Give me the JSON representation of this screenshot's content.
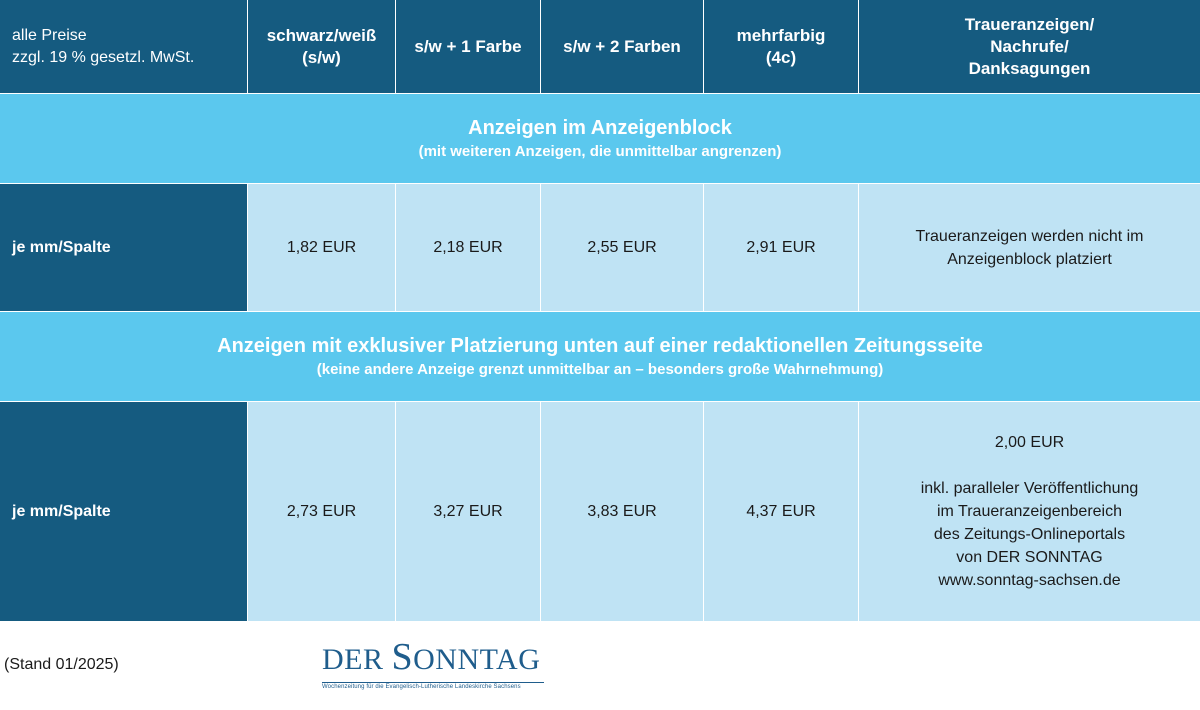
{
  "header": {
    "note_line1": "alle Preise",
    "note_line2": "zzgl. 19 % gesetzl. MwSt.",
    "col1_line1": "schwarz/weiß",
    "col1_line2": "(s/w)",
    "col2": "s/w + 1 Farbe",
    "col3": "s/w + 2 Farben",
    "col4_line1": "mehrfarbig",
    "col4_line2": "(4c)",
    "col5_line1": "Traueranzeigen/",
    "col5_line2": "Nachrufe/",
    "col5_line3": "Danksagungen"
  },
  "section1": {
    "title": "Anzeigen im Anzeigenblock",
    "subtitle": "(mit weiteren Anzeigen, die unmittelbar angrenzen)"
  },
  "row1": {
    "label": "je mm/Spalte",
    "bw": "1,82 EUR",
    "one_color": "2,18 EUR",
    "two_colors": "2,55 EUR",
    "multicolor": "2,91 EUR",
    "mourning_line1": "Traueranzeigen werden nicht im",
    "mourning_line2": "Anzeigenblock platziert"
  },
  "section2": {
    "title": "Anzeigen mit exklusiver Platzierung unten auf einer redaktionellen Zeitungsseite",
    "subtitle": "(keine andere Anzeige grenzt unmittelbar an – besonders große Wahrnehmung)"
  },
  "row2": {
    "label": "je mm/Spalte",
    "bw": "2,73 EUR",
    "one_color": "3,27 EUR",
    "two_colors": "3,83 EUR",
    "multicolor": "4,37 EUR",
    "mourning_price": "2,00 EUR",
    "mourning_line1": "inkl. paralleler Veröffentlichung",
    "mourning_line2": "im Traueranzeigenbereich",
    "mourning_line3": "des Zeitungs-Onlineportals",
    "mourning_line4": "von DER SONNTAG",
    "mourning_line5": "www.sonntag-sachsen.de"
  },
  "footer": {
    "stand": "(Stand 01/2025)"
  },
  "logo": {
    "part1": "DER ",
    "cap": "S",
    "part2": "ONNTAG",
    "tagline": "Wochenzeitung für die Evangelisch-Lutherische Landeskirche Sachsens"
  },
  "colors": {
    "dark_blue": "#155b80",
    "section_blue": "#5bc8ee",
    "cell_light_blue": "#bfe3f4"
  }
}
